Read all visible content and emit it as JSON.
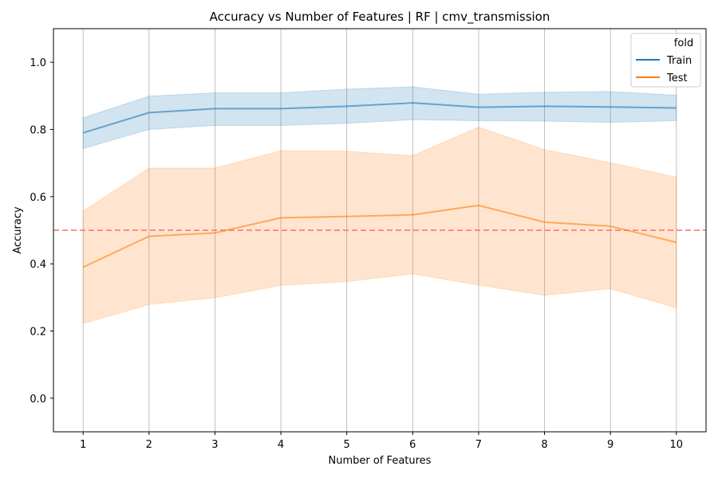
{
  "chart_data": {
    "type": "line",
    "title": "Accuracy vs Number of Features | RF | cmv_transmission",
    "xlabel": "Number of Features",
    "ylabel": "Accuracy",
    "x": [
      1,
      2,
      3,
      4,
      5,
      6,
      7,
      8,
      9,
      10
    ],
    "xlim": [
      0.55,
      10.45
    ],
    "ylim": [
      -0.1,
      1.1
    ],
    "yticks": [
      0.0,
      0.2,
      0.4,
      0.6,
      0.8,
      1.0
    ],
    "ytick_labels": [
      "0.0",
      "0.2",
      "0.4",
      "0.6",
      "0.8",
      "1.0"
    ],
    "xtick_labels": [
      "1",
      "2",
      "3",
      "4",
      "5",
      "6",
      "7",
      "8",
      "9",
      "10"
    ],
    "grid": "vertical",
    "reference_line": {
      "y": 0.5,
      "color": "#ff6f69",
      "style": "dashed"
    },
    "legend": {
      "title": "fold",
      "placement": "top-right"
    },
    "series": [
      {
        "name": "Train",
        "color": "#1f77b4",
        "values": [
          0.79,
          0.85,
          0.862,
          0.862,
          0.869,
          0.879,
          0.866,
          0.869,
          0.867,
          0.864
        ],
        "lower": [
          0.743,
          0.8,
          0.812,
          0.812,
          0.818,
          0.829,
          0.826,
          0.825,
          0.821,
          0.826
        ],
        "upper": [
          0.835,
          0.899,
          0.909,
          0.909,
          0.92,
          0.927,
          0.905,
          0.911,
          0.913,
          0.902
        ]
      },
      {
        "name": "Test",
        "color": "#ff7f0e",
        "values": [
          0.39,
          0.482,
          0.492,
          0.537,
          0.541,
          0.546,
          0.574,
          0.524,
          0.512,
          0.464
        ],
        "lower": [
          0.222,
          0.279,
          0.299,
          0.336,
          0.347,
          0.37,
          0.337,
          0.306,
          0.326,
          0.269
        ],
        "upper": [
          0.557,
          0.685,
          0.685,
          0.737,
          0.735,
          0.722,
          0.807,
          0.74,
          0.701,
          0.658
        ]
      }
    ]
  }
}
